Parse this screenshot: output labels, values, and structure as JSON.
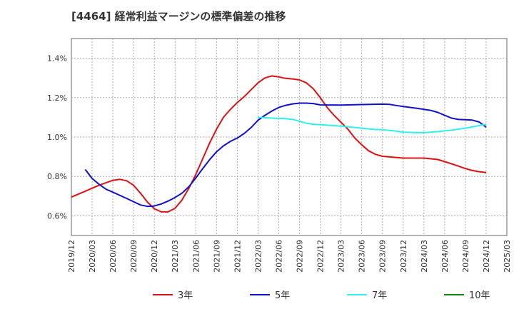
{
  "chart_data": {
    "type": "line",
    "title": "[4464]  経常利益マージンの標準偏差の推移",
    "xlabel": "",
    "ylabel": "",
    "ylim": [
      0.5,
      1.5
    ],
    "grid": true,
    "legend_position": "bottom",
    "y_ticks": [
      {
        "value": 0.6,
        "label": "0.6%"
      },
      {
        "value": 0.8,
        "label": "0.8%"
      },
      {
        "value": 1.0,
        "label": "1.0%"
      },
      {
        "value": 1.2,
        "label": "1.2%"
      },
      {
        "value": 1.4,
        "label": "1.4%"
      }
    ],
    "x_ticks": [
      "2019/12",
      "2020/03",
      "2020/06",
      "2020/09",
      "2020/12",
      "2021/03",
      "2021/06",
      "2021/09",
      "2021/12",
      "2022/03",
      "2022/06",
      "2022/09",
      "2022/12",
      "2023/03",
      "2023/06",
      "2023/09",
      "2023/12",
      "2024/03",
      "2024/06",
      "2024/09",
      "2024/12",
      "2025/03"
    ],
    "series": [
      {
        "name": "3年",
        "color": "#dd1111",
        "points": [
          [
            "2019/12",
            0.695
          ],
          [
            "2020/02",
            0.725
          ],
          [
            "2020/04",
            0.755
          ],
          [
            "2020/06",
            0.78
          ],
          [
            "2020/07",
            0.785
          ],
          [
            "2020/08",
            0.778
          ],
          [
            "2020/09",
            0.755
          ],
          [
            "2020/10",
            0.715
          ],
          [
            "2020/11",
            0.67
          ],
          [
            "2020/12",
            0.636
          ],
          [
            "2021/01",
            0.62
          ],
          [
            "2021/02",
            0.62
          ],
          [
            "2021/03",
            0.638
          ],
          [
            "2021/04",
            0.68
          ],
          [
            "2021/05",
            0.74
          ],
          [
            "2021/06",
            0.81
          ],
          [
            "2021/07",
            0.89
          ],
          [
            "2021/08",
            0.97
          ],
          [
            "2021/09",
            1.04
          ],
          [
            "2021/10",
            1.1
          ],
          [
            "2021/11",
            1.14
          ],
          [
            "2021/12",
            1.175
          ],
          [
            "2022/01",
            1.205
          ],
          [
            "2022/02",
            1.24
          ],
          [
            "2022/03",
            1.275
          ],
          [
            "2022/04",
            1.3
          ],
          [
            "2022/05",
            1.31
          ],
          [
            "2022/06",
            1.305
          ],
          [
            "2022/07",
            1.298
          ],
          [
            "2022/08",
            1.295
          ],
          [
            "2022/09",
            1.29
          ],
          [
            "2022/10",
            1.275
          ],
          [
            "2022/11",
            1.245
          ],
          [
            "2022/12",
            1.2
          ],
          [
            "2023/01",
            1.15
          ],
          [
            "2023/02",
            1.11
          ],
          [
            "2023/03",
            1.075
          ],
          [
            "2023/04",
            1.04
          ],
          [
            "2023/05",
            0.995
          ],
          [
            "2023/06",
            0.96
          ],
          [
            "2023/07",
            0.93
          ],
          [
            "2023/08",
            0.912
          ],
          [
            "2023/09",
            0.902
          ],
          [
            "2023/12",
            0.893
          ],
          [
            "2024/03",
            0.893
          ],
          [
            "2024/05",
            0.886
          ],
          [
            "2024/07",
            0.864
          ],
          [
            "2024/09",
            0.84
          ],
          [
            "2024/10",
            0.83
          ],
          [
            "2024/11",
            0.824
          ],
          [
            "2024/12",
            0.82
          ]
        ]
      },
      {
        "name": "5年",
        "color": "#1111cc",
        "points": [
          [
            "2020/02",
            0.835
          ],
          [
            "2020/03",
            0.79
          ],
          [
            "2020/04",
            0.76
          ],
          [
            "2020/05",
            0.735
          ],
          [
            "2020/06",
            0.72
          ],
          [
            "2020/08",
            0.688
          ],
          [
            "2020/10",
            0.655
          ],
          [
            "2020/11",
            0.648
          ],
          [
            "2020/12",
            0.65
          ],
          [
            "2021/01",
            0.66
          ],
          [
            "2021/02",
            0.675
          ],
          [
            "2021/03",
            0.693
          ],
          [
            "2021/04",
            0.715
          ],
          [
            "2021/05",
            0.748
          ],
          [
            "2021/06",
            0.792
          ],
          [
            "2021/07",
            0.84
          ],
          [
            "2021/08",
            0.885
          ],
          [
            "2021/09",
            0.925
          ],
          [
            "2021/10",
            0.955
          ],
          [
            "2021/11",
            0.978
          ],
          [
            "2021/12",
            0.995
          ],
          [
            "2022/01",
            1.018
          ],
          [
            "2022/02",
            1.048
          ],
          [
            "2022/03",
            1.085
          ],
          [
            "2022/04",
            1.11
          ],
          [
            "2022/05",
            1.132
          ],
          [
            "2022/06",
            1.15
          ],
          [
            "2022/07",
            1.161
          ],
          [
            "2022/08",
            1.168
          ],
          [
            "2022/09",
            1.172
          ],
          [
            "2022/10",
            1.172
          ],
          [
            "2022/11",
            1.17
          ],
          [
            "2022/12",
            1.163
          ],
          [
            "2023/03",
            1.162
          ],
          [
            "2023/06",
            1.165
          ],
          [
            "2023/09",
            1.167
          ],
          [
            "2023/10",
            1.166
          ],
          [
            "2023/11",
            1.16
          ],
          [
            "2023/12",
            1.155
          ],
          [
            "2024/02",
            1.146
          ],
          [
            "2024/04",
            1.135
          ],
          [
            "2024/05",
            1.125
          ],
          [
            "2024/06",
            1.11
          ],
          [
            "2024/07",
            1.096
          ],
          [
            "2024/08",
            1.089
          ],
          [
            "2024/09",
            1.088
          ],
          [
            "2024/10",
            1.086
          ],
          [
            "2024/11",
            1.076
          ],
          [
            "2024/12",
            1.05
          ]
        ]
      },
      {
        "name": "7年",
        "color": "#33eeee",
        "points": [
          [
            "2022/03",
            1.1
          ],
          [
            "2022/05",
            1.096
          ],
          [
            "2022/07",
            1.093
          ],
          [
            "2022/08",
            1.09
          ],
          [
            "2022/09",
            1.08
          ],
          [
            "2022/10",
            1.07
          ],
          [
            "2022/11",
            1.065
          ],
          [
            "2022/12",
            1.063
          ],
          [
            "2023/03",
            1.055
          ],
          [
            "2023/06",
            1.045
          ],
          [
            "2023/08",
            1.038
          ],
          [
            "2023/09",
            1.037
          ],
          [
            "2023/11",
            1.03
          ],
          [
            "2023/12",
            1.025
          ],
          [
            "2024/02",
            1.022
          ],
          [
            "2024/03",
            1.022
          ],
          [
            "2024/05",
            1.027
          ],
          [
            "2024/07",
            1.035
          ],
          [
            "2024/09",
            1.045
          ],
          [
            "2024/11",
            1.058
          ],
          [
            "2024/12",
            1.065
          ]
        ]
      },
      {
        "name": "10年",
        "color": "#118811",
        "points": []
      }
    ]
  }
}
